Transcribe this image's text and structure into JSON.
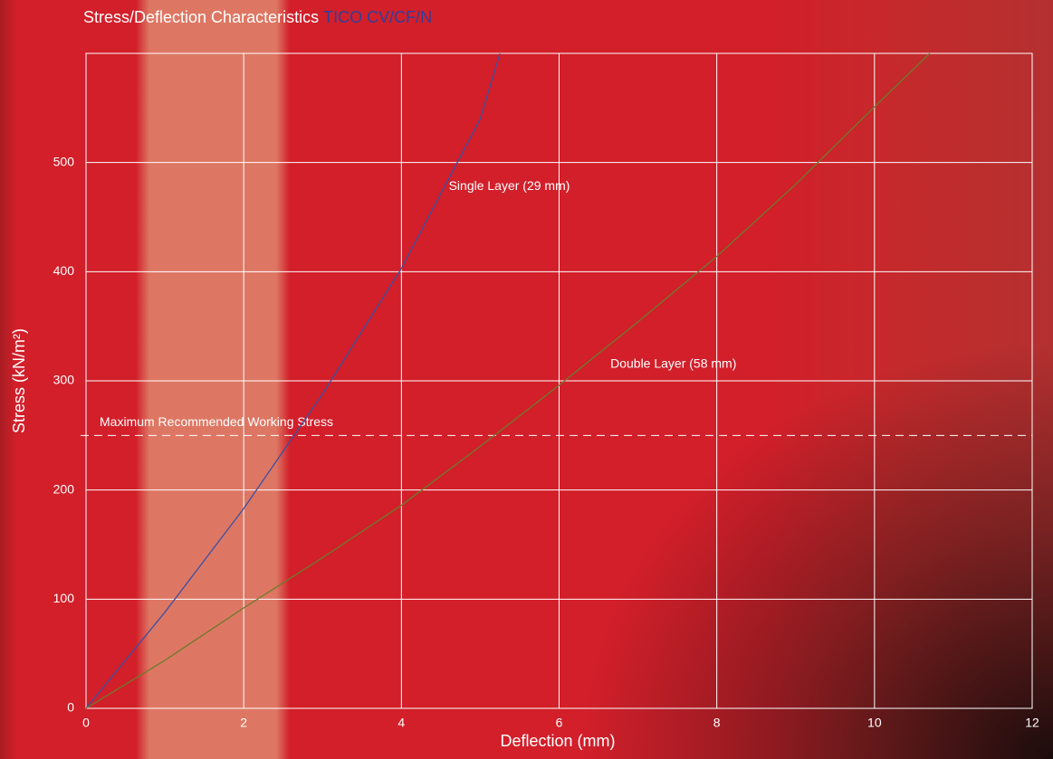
{
  "chart_data": {
    "type": "line",
    "title": "Stress/Deflection Characteristics",
    "subtitle": "TICO CV/CF/N",
    "x_label": "Deflection (mm)",
    "y_label": "Stress (kN/m²)",
    "xlim": [
      0,
      12
    ],
    "xticks": [
      0,
      2,
      4,
      6,
      8,
      10,
      12
    ],
    "ylim": [
      0,
      600
    ],
    "yticks": [
      0,
      100,
      200,
      300,
      400,
      500
    ],
    "grid": true,
    "series": [
      {
        "name": "Single Layer (29 mm)",
        "color": "#3d4fa3",
        "x": [
          0,
          1,
          2,
          3,
          4,
          5,
          5.25
        ],
        "values": [
          0,
          88,
          183,
          288,
          403,
          540,
          600
        ],
        "label_at": [
          4.6,
          478
        ]
      },
      {
        "name": "Double Layer (58 mm)",
        "color": "#6e7a2c",
        "x": [
          0,
          1,
          2,
          3,
          4,
          5,
          6,
          7,
          8,
          9,
          10,
          10.7
        ],
        "values": [
          0,
          44,
          92,
          138,
          186,
          240,
          296,
          354,
          414,
          480,
          551,
          600
        ],
        "label_at": [
          6.65,
          315
        ]
      }
    ],
    "reference_line": {
      "label": "Maximum Recommended Working Stress",
      "value": 250
    }
  }
}
